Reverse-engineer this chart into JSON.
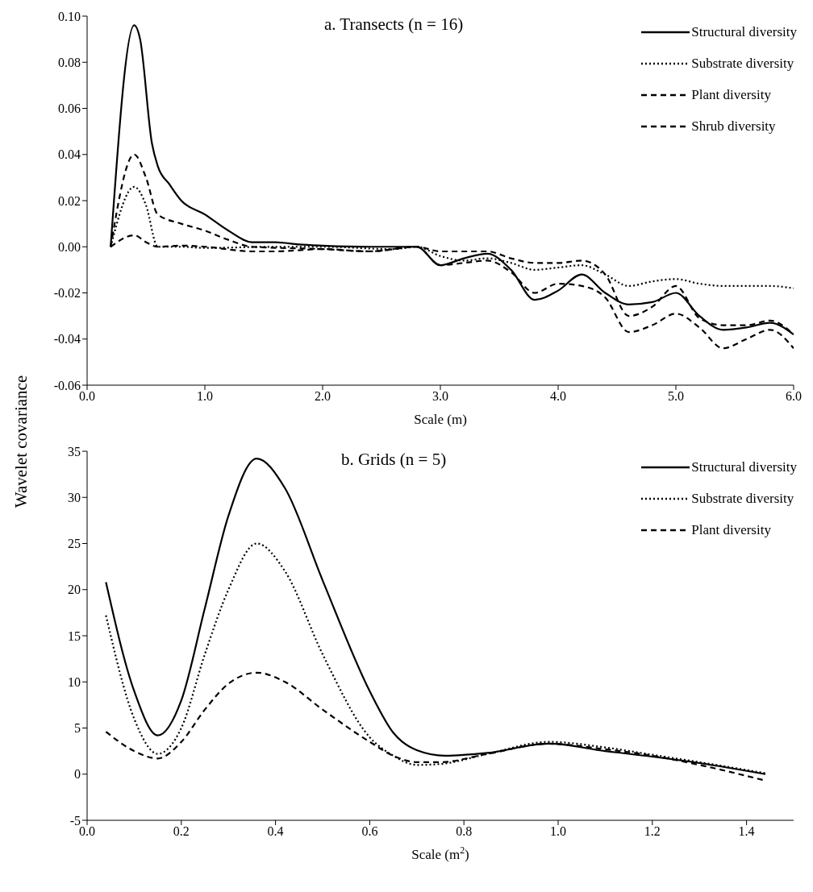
{
  "chart_data": [
    {
      "type": "line",
      "title": "a. Transects (n = 16)",
      "xlabel": "Scale (m)",
      "ylabel": "Wavelet covariance",
      "xlim": [
        0,
        6
      ],
      "ylim": [
        -0.06,
        0.1
      ],
      "xticks": [
        {
          "value": 0,
          "label": "0.0"
        },
        {
          "value": 1,
          "label": "1.0"
        },
        {
          "value": 2,
          "label": "2.0"
        },
        {
          "value": 3,
          "label": "3.0"
        },
        {
          "value": 4,
          "label": "4.0"
        },
        {
          "value": 5,
          "label": "5.0"
        },
        {
          "value": 6,
          "label": "6.0"
        }
      ],
      "yticks": [
        {
          "value": -0.06,
          "label": "-0.06"
        },
        {
          "value": -0.04,
          "label": "-0.04"
        },
        {
          "value": -0.02,
          "label": "-0.02"
        },
        {
          "value": 0,
          "label": "0.00"
        },
        {
          "value": 0.02,
          "label": "0.02"
        },
        {
          "value": 0.04,
          "label": "0.04"
        },
        {
          "value": 0.06,
          "label": "0.06"
        },
        {
          "value": 0.08,
          "label": "0.08"
        },
        {
          "value": 0.1,
          "label": "0.10"
        }
      ],
      "legend": "top right",
      "marker": "none",
      "series": [
        {
          "name": "Structural diversity",
          "color": "#000000",
          "line_style": "solid",
          "x": [
            0.2,
            0.4,
            0.45,
            0.55,
            0.6,
            0.7,
            0.8,
            1.0,
            1.2,
            1.4,
            1.6,
            1.8,
            2.0,
            2.4,
            2.8,
            3.0,
            3.2,
            3.4,
            3.6,
            3.8,
            4.0,
            4.2,
            4.4,
            4.6,
            4.8,
            5.0,
            5.2,
            5.4,
            5.6,
            5.8,
            6.0
          ],
          "values": [
            0,
            0.096,
            0.09,
            0.045,
            0.035,
            0.027,
            0.02,
            0.014,
            0.007,
            0.002,
            0.002,
            0.001,
            0.0005,
            0,
            0,
            -0.008,
            -0.005,
            -0.003,
            -0.01,
            -0.023,
            -0.019,
            -0.012,
            -0.02,
            -0.025,
            -0.024,
            -0.02,
            -0.03,
            -0.036,
            -0.035,
            -0.033,
            -0.038
          ]
        },
        {
          "name": "Substrate diversity",
          "color": "#000000",
          "line_style": "dotted",
          "x": [
            0.2,
            0.4,
            0.5,
            0.6,
            0.8,
            1.0,
            1.6,
            2.0,
            2.6,
            2.8,
            3.0,
            3.2,
            3.4,
            3.6,
            3.8,
            4.0,
            4.2,
            4.4,
            4.6,
            4.8,
            5.0,
            5.2,
            5.4,
            5.6,
            5.8,
            6.0
          ],
          "values": [
            0,
            0.026,
            0.018,
            0,
            0,
            -0.0005,
            0,
            0,
            -0.001,
            0,
            -0.004,
            -0.006,
            -0.005,
            -0.007,
            -0.01,
            -0.009,
            -0.008,
            -0.012,
            -0.017,
            -0.015,
            -0.014,
            -0.016,
            -0.017,
            -0.017,
            -0.017,
            -0.018
          ]
        },
        {
          "name": "Plant diversity",
          "color": "#000000",
          "line_style": "dashed",
          "x": [
            0.2,
            0.4,
            0.5,
            0.6,
            0.8,
            1.0,
            1.2,
            1.4,
            2.0,
            2.4,
            2.8,
            3.0,
            3.2,
            3.4,
            3.6,
            3.8,
            4.0,
            4.2,
            4.4,
            4.6,
            4.8,
            5.0,
            5.2,
            5.4,
            5.6,
            5.8,
            6.0
          ],
          "values": [
            0,
            0.04,
            0.03,
            0.014,
            0.01,
            0.007,
            0.003,
            0,
            -0.001,
            -0.002,
            0,
            -0.008,
            -0.007,
            -0.006,
            -0.011,
            -0.02,
            -0.016,
            -0.017,
            -0.022,
            -0.037,
            -0.034,
            -0.029,
            -0.035,
            -0.044,
            -0.04,
            -0.036,
            -0.044
          ]
        },
        {
          "name": "Shrub diversity",
          "color": "#000000",
          "line_style": "dashed",
          "x": [
            0.2,
            0.4,
            0.5,
            0.6,
            0.8,
            1.0,
            1.4,
            1.6,
            2.0,
            2.4,
            2.8,
            3.0,
            3.2,
            3.4,
            3.6,
            3.8,
            4.0,
            4.2,
            4.4,
            4.6,
            4.8,
            5.0,
            5.2,
            5.4,
            5.6,
            5.8,
            6.0
          ],
          "values": [
            0,
            0.005,
            0.002,
            0,
            0.0005,
            0,
            -0.002,
            -0.002,
            -0.001,
            -0.002,
            0,
            -0.002,
            -0.002,
            -0.002,
            -0.005,
            -0.007,
            -0.007,
            -0.006,
            -0.012,
            -0.03,
            -0.026,
            -0.017,
            -0.031,
            -0.034,
            -0.034,
            -0.032,
            -0.038
          ]
        }
      ]
    },
    {
      "type": "line",
      "title": "b. Grids (n = 5)",
      "xlabel": "Scale (m$^{2}$)",
      "xlim": [
        0,
        1.5
      ],
      "ylim": [
        -5,
        35
      ],
      "xticks": [
        {
          "value": 0,
          "label": "0.0"
        },
        {
          "value": 0.2,
          "label": "0.2"
        },
        {
          "value": 0.4,
          "label": "0.4"
        },
        {
          "value": 0.6,
          "label": "0.6"
        },
        {
          "value": 0.8,
          "label": "0.8"
        },
        {
          "value": 1,
          "label": "1.0"
        },
        {
          "value": 1.2,
          "label": "1.2"
        },
        {
          "value": 1.4,
          "label": "1.4"
        }
      ],
      "yticks": [
        -5,
        0,
        5,
        10,
        15,
        20,
        25,
        30,
        35
      ],
      "legend": "top right",
      "marker": "none",
      "series": [
        {
          "name": "Structural diversity",
          "color": "#000000",
          "line_style": "solid",
          "x": [
            0.04,
            0.1,
            0.15,
            0.2,
            0.25,
            0.3,
            0.36,
            0.42,
            0.5,
            0.6,
            0.65,
            0.7,
            0.76,
            0.85,
            0.98,
            1.1,
            1.2,
            1.3,
            1.44
          ],
          "values": [
            20.8,
            9,
            4.2,
            8,
            18,
            28,
            34.2,
            31,
            21,
            9,
            4.5,
            2.6,
            2,
            2.3,
            3.3,
            2.5,
            1.9,
            1.2,
            0
          ]
        },
        {
          "name": "Substrate diversity",
          "color": "#000000",
          "line_style": "dotted",
          "x": [
            0.04,
            0.1,
            0.15,
            0.2,
            0.25,
            0.3,
            0.36,
            0.42,
            0.5,
            0.6,
            0.65,
            0.7,
            0.75,
            0.85,
            0.98,
            1.1,
            1.2,
            1.3,
            1.44
          ],
          "values": [
            17.2,
            6,
            2.2,
            5,
            13,
            20,
            25,
            22,
            13,
            4,
            2,
            1,
            1.1,
            2.2,
            3.5,
            2.9,
            2.1,
            1.3,
            0.1
          ]
        },
        {
          "name": "Plant diversity",
          "color": "#000000",
          "line_style": "dashed",
          "x": [
            0.04,
            0.1,
            0.15,
            0.2,
            0.25,
            0.3,
            0.36,
            0.42,
            0.5,
            0.6,
            0.65,
            0.7,
            0.75,
            0.85,
            0.98,
            1.1,
            1.2,
            1.3,
            1.44
          ],
          "values": [
            4.6,
            2.5,
            1.7,
            3.5,
            7,
            9.8,
            11,
            10,
            7,
            3.5,
            2,
            1.3,
            1.3,
            2.2,
            3.3,
            2.7,
            2,
            1,
            -0.7
          ]
        }
      ]
    }
  ]
}
